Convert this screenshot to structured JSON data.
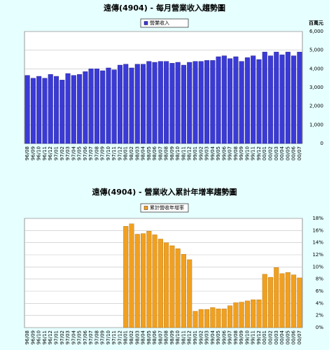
{
  "chart_data": [
    {
      "type": "bar",
      "title": "遠傳(4904) - 每月營業收入趨勢圖",
      "y_label": "百萬元",
      "categories": [
        "96/08",
        "96/09",
        "96/10",
        "96/11",
        "96/12",
        "97/01",
        "97/02",
        "97/03",
        "97/04",
        "97/05",
        "97/06",
        "97/07",
        "97/08",
        "97/09",
        "97/10",
        "97/11",
        "97/12",
        "98/01",
        "98/02",
        "98/03",
        "98/04",
        "98/05",
        "98/06",
        "98/07",
        "98/08",
        "98/09",
        "98/10",
        "98/11",
        "98/12",
        "99/01",
        "99/02",
        "99/03",
        "99/04",
        "99/05",
        "99/06",
        "99/07",
        "99/08",
        "99/09",
        "99/10",
        "99/11",
        "99/12",
        "00/01",
        "00/02",
        "00/03",
        "00/04",
        "00/05",
        "00/06",
        "00/07"
      ],
      "series": [
        {
          "name": "營業收入",
          "color": "#3a3ad6",
          "values": [
            3650,
            3500,
            3600,
            3500,
            3700,
            3600,
            3400,
            3750,
            3650,
            3700,
            3850,
            4000,
            4000,
            3900,
            4050,
            3950,
            4200,
            4250,
            4050,
            4250,
            4250,
            4400,
            4350,
            4400,
            4400,
            4300,
            4350,
            4200,
            4350,
            4400,
            4400,
            4450,
            4450,
            4650,
            4700,
            4550,
            4650,
            4400,
            4600,
            4700,
            4500,
            4900,
            4700,
            4900,
            4750,
            4900,
            4700,
            4900
          ]
        }
      ],
      "ylim": [
        0,
        6000
      ],
      "yticks": [
        0,
        {
          "value": 1000,
          "label": "1,000"
        },
        {
          "value": 2000,
          "label": "2,000"
        },
        {
          "value": 3000,
          "label": "3,000"
        },
        {
          "value": 4000,
          "label": "4,000"
        },
        {
          "value": 5000,
          "label": "5,000"
        },
        {
          "value": 6000,
          "label": "6,000"
        }
      ],
      "grid": true,
      "legend": "top"
    },
    {
      "type": "bar",
      "title": "遠傳(4904) - 營業收入累計年增率趨勢圖",
      "categories": [
        "96/08",
        "96/09",
        "96/10",
        "96/11",
        "96/12",
        "97/01",
        "97/02",
        "97/03",
        "97/04",
        "97/05",
        "97/06",
        "97/07",
        "97/08",
        "97/09",
        "97/10",
        "97/11",
        "97/12",
        "98/01",
        "98/02",
        "98/03",
        "98/04",
        "98/05",
        "98/06",
        "98/07",
        "98/08",
        "98/09",
        "98/10",
        "98/11",
        "98/12",
        "99/01",
        "99/02",
        "99/03",
        "99/04",
        "99/05",
        "99/06",
        "99/07",
        "99/08",
        "99/09",
        "99/10",
        "99/11",
        "99/12",
        "00/01",
        "00/02",
        "00/03",
        "00/04",
        "00/05",
        "00/06",
        "00/07"
      ],
      "series": [
        {
          "name": "累計營收年增率",
          "color": "#f0a020",
          "values": [
            null,
            null,
            null,
            null,
            null,
            null,
            null,
            null,
            null,
            null,
            null,
            null,
            null,
            null,
            null,
            null,
            null,
            16.7,
            17.1,
            15.4,
            15.5,
            15.9,
            15.3,
            14.6,
            14.0,
            13.5,
            13.0,
            12.1,
            11.2,
            2.7,
            3.0,
            3.0,
            3.3,
            3.1,
            3.1,
            3.6,
            4.1,
            4.2,
            4.4,
            4.6,
            4.6,
            8.8,
            8.3,
            9.9,
            8.9,
            9.1,
            8.7,
            8.2
          ]
        }
      ],
      "ylim": [
        0,
        18
      ],
      "yticks": [
        {
          "value": 0,
          "label": "0%"
        },
        {
          "value": 2,
          "label": "2%"
        },
        {
          "value": 4,
          "label": "4%"
        },
        {
          "value": 6,
          "label": "6%"
        },
        {
          "value": 8,
          "label": "8%"
        },
        {
          "value": 10,
          "label": "10%"
        },
        {
          "value": 12,
          "label": "12%"
        },
        {
          "value": 14,
          "label": "14%"
        },
        {
          "value": 16,
          "label": "16%"
        },
        {
          "value": 18,
          "label": "18%"
        }
      ],
      "grid": true,
      "legend": "top"
    }
  ]
}
